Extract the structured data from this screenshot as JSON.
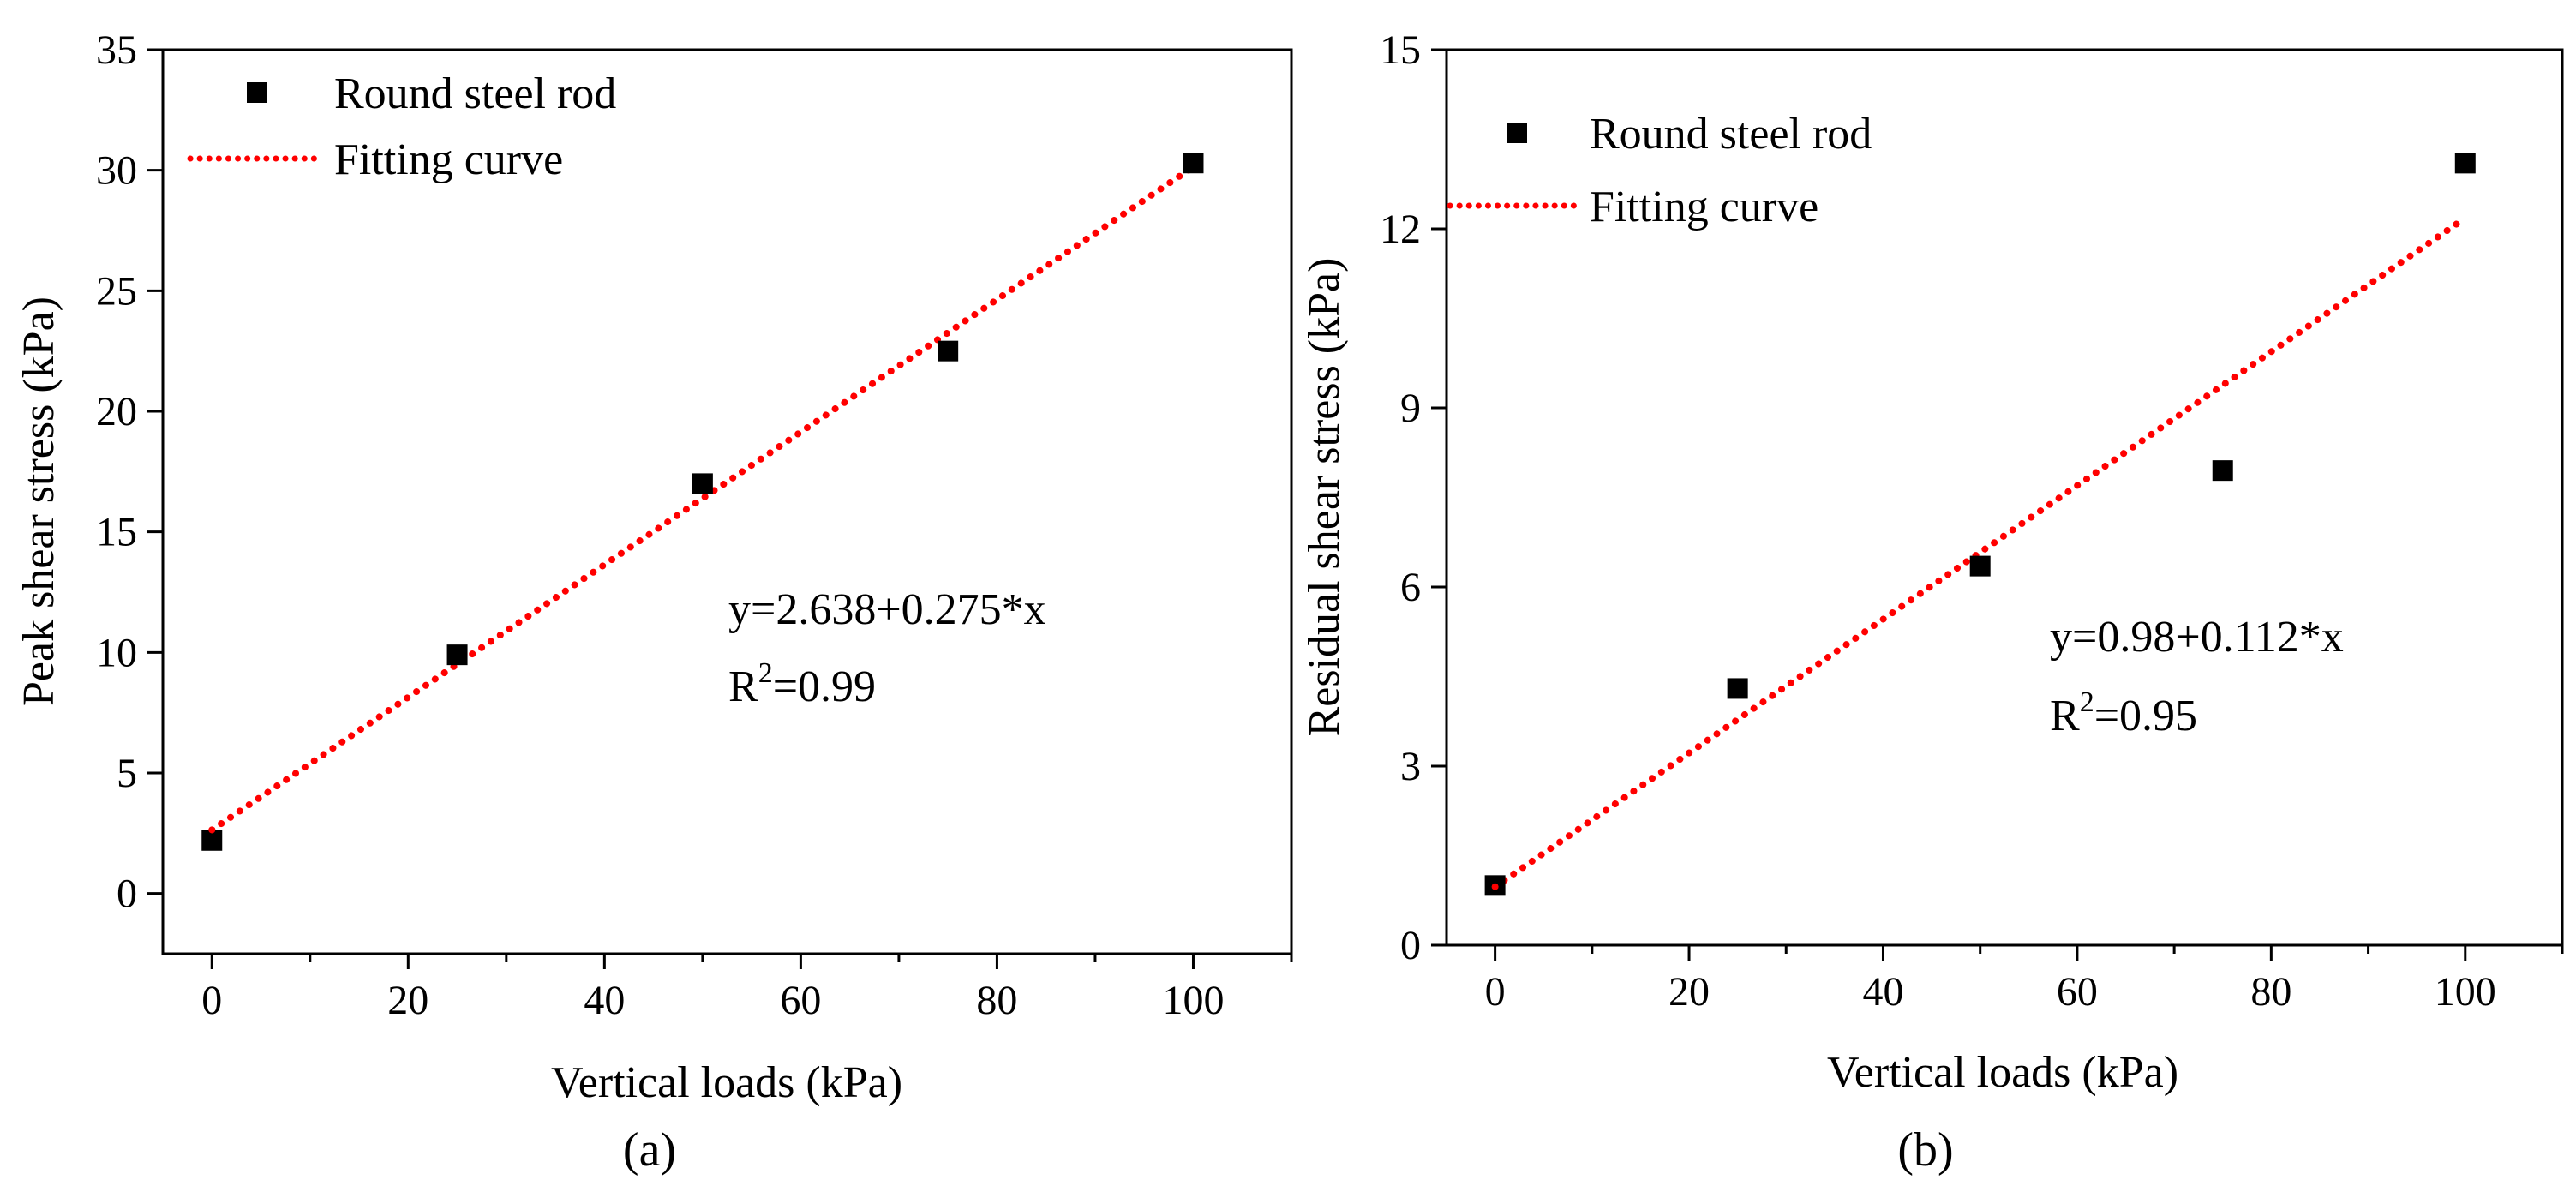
{
  "chart_data": [
    {
      "type": "scatter",
      "panel_label": "(a)",
      "xlabel": "Vertical loads (kPa)",
      "ylabel": "Peak shear stress (kPa)",
      "xlim": [
        -5,
        110
      ],
      "ylim": [
        -2.5,
        35
      ],
      "xticks": [
        0,
        20,
        40,
        60,
        80,
        100
      ],
      "yticks": [
        0,
        5,
        10,
        15,
        20,
        25,
        30,
        35
      ],
      "grid": false,
      "legend_position": "top-left",
      "series": [
        {
          "name": "Round steel rod",
          "kind": "points",
          "marker": "square",
          "color": "#000000",
          "x": [
            0,
            25,
            50,
            75,
            100
          ],
          "y": [
            2.2,
            9.9,
            17.0,
            22.5,
            30.3
          ]
        },
        {
          "name": "Fitting curve",
          "kind": "fit-line",
          "style": "dotted",
          "color": "#ff0000",
          "intercept": 2.638,
          "slope": 0.275,
          "x_range": [
            0,
            100
          ]
        }
      ],
      "annotation": {
        "equation": "y=2.638+0.275*x",
        "r2_prefix": "R",
        "r2_sup": "2",
        "r2_value": "=0.99"
      }
    },
    {
      "type": "scatter",
      "panel_label": "(b)",
      "xlabel": "Vertical loads (kPa)",
      "ylabel": "Residual shear stress (kPa)",
      "xlim": [
        -5,
        110
      ],
      "ylim": [
        0,
        15
      ],
      "xticks": [
        0,
        20,
        40,
        60,
        80,
        100
      ],
      "yticks": [
        0,
        3,
        6,
        9,
        12,
        15
      ],
      "grid": false,
      "legend_position": "top-left",
      "series": [
        {
          "name": "Round steel rod",
          "kind": "points",
          "marker": "square",
          "color": "#000000",
          "x": [
            0,
            25,
            50,
            75,
            100
          ],
          "y": [
            1.0,
            4.3,
            6.35,
            7.95,
            13.1
          ]
        },
        {
          "name": "Fitting curve",
          "kind": "fit-line",
          "style": "dotted",
          "color": "#ff0000",
          "intercept": 0.98,
          "slope": 0.112,
          "x_range": [
            0,
            100
          ]
        }
      ],
      "annotation": {
        "equation": "y=0.98+0.112*x",
        "r2_prefix": "R",
        "r2_sup": "2",
        "r2_value": "=0.95"
      }
    }
  ]
}
